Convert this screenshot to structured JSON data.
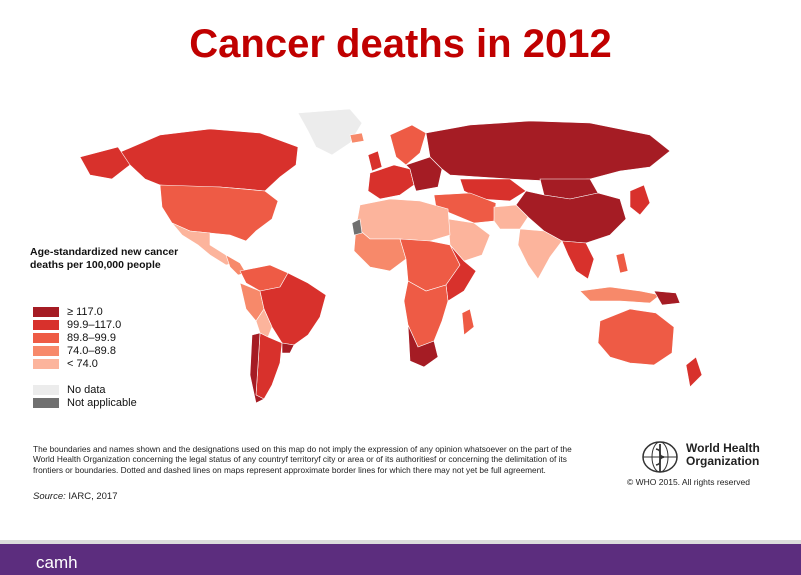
{
  "title": "Cancer deaths in 2012",
  "legend": {
    "title_line1": "Age-standardized new cancer",
    "title_line2": "deaths per 100,000 people",
    "items": [
      {
        "label": "≥ 117.0",
        "color": "#a51c24"
      },
      {
        "label": "99.9–117.0",
        "color": "#d8312c"
      },
      {
        "label": "89.8–99.9",
        "color": "#ee5b45"
      },
      {
        "label": "74.0–89.8",
        "color": "#f7896a"
      },
      {
        "label": "< 74.0",
        "color": "#fcb49c"
      }
    ],
    "extra": [
      {
        "label": "No data",
        "color": "#ececec"
      },
      {
        "label": "Not applicable",
        "color": "#707070"
      }
    ]
  },
  "disclaimer": "The boundaries and names shown and the designations used on this map do not imply the expression of any opinion whatsoever on the part of the World Health Organization concerning the legal status of any countryf territoryf city or area or of its authoritiesf or concerning the delimitation of its frontiers or boundaries. Dotted and dashed lines on maps represent approximate border lines for which there may not yet be full agreement.",
  "source": {
    "label": "Source:",
    "text": " IARC, 2017"
  },
  "who": {
    "name_line1": "World Health",
    "name_line2": "Organization",
    "copyright": "© WHO 2015. All rights reserved"
  },
  "footer": {
    "brand": "camh",
    "color": "#5c2d7e"
  }
}
